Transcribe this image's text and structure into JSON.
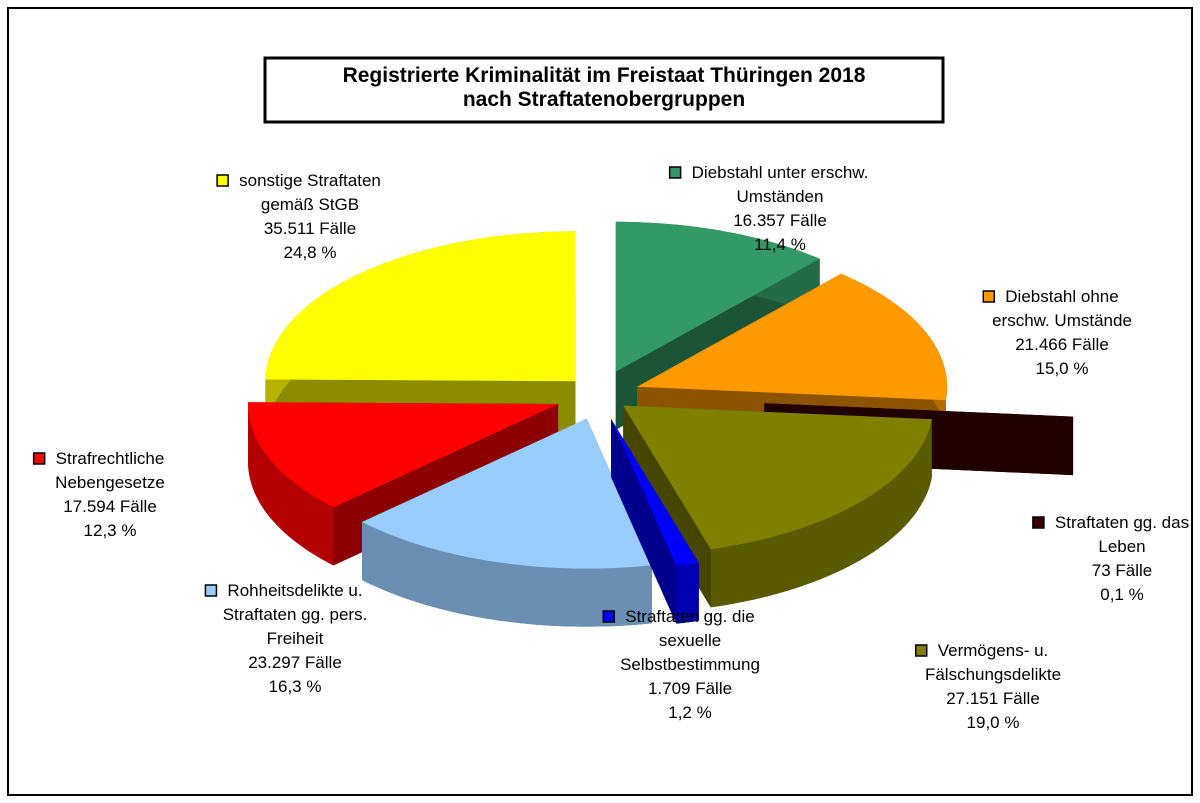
{
  "chart_data": {
    "type": "pie",
    "three_d": true,
    "title": "Registrierte Kriminalität im Freistaat Thüringen 2018\nnach Straftatenobergruppen",
    "categories": [
      "Diebstahl unter erschw.\nUmständen",
      "Diebstahl ohne\nerschw. Umstände",
      "Straftaten gg. das\nLeben",
      "Vermögens- u.\nFälschungsdelikte",
      "Straftaten gg. die\nsexuelle\nSelbstbestimmung",
      "Rohheitsdelikte u.\nStraftaten gg. pers.\nFreiheit",
      "Strafrechtliche\nNebengesetze",
      "sonstige Straftaten\ngemäß StGB"
    ],
    "values": [
      11.4,
      15.0,
      0.1,
      19.0,
      1.2,
      16.3,
      12.3,
      24.8
    ],
    "value_labels": [
      "11,4 %",
      "15,0 %",
      "0,1 %",
      "19,0 %",
      "1,2 %",
      "16,3 %",
      "12,3 %",
      "24,8 %"
    ],
    "case_counts": [
      16357,
      21466,
      73,
      27151,
      1709,
      23297,
      17594,
      35511
    ],
    "case_count_labels": [
      "16.357 Fälle",
      "21.466 Fälle",
      "73 Fälle",
      "27.151 Fälle",
      "1.709 Fälle",
      "23.297 Fälle",
      "17.594 Fälle",
      "35.511 Fälle"
    ],
    "colors": [
      "#339966",
      "#ff9900",
      "#3a0000",
      "#808000",
      "#0000ff",
      "#99ccff",
      "#ff0000",
      "#ffff00"
    ]
  }
}
